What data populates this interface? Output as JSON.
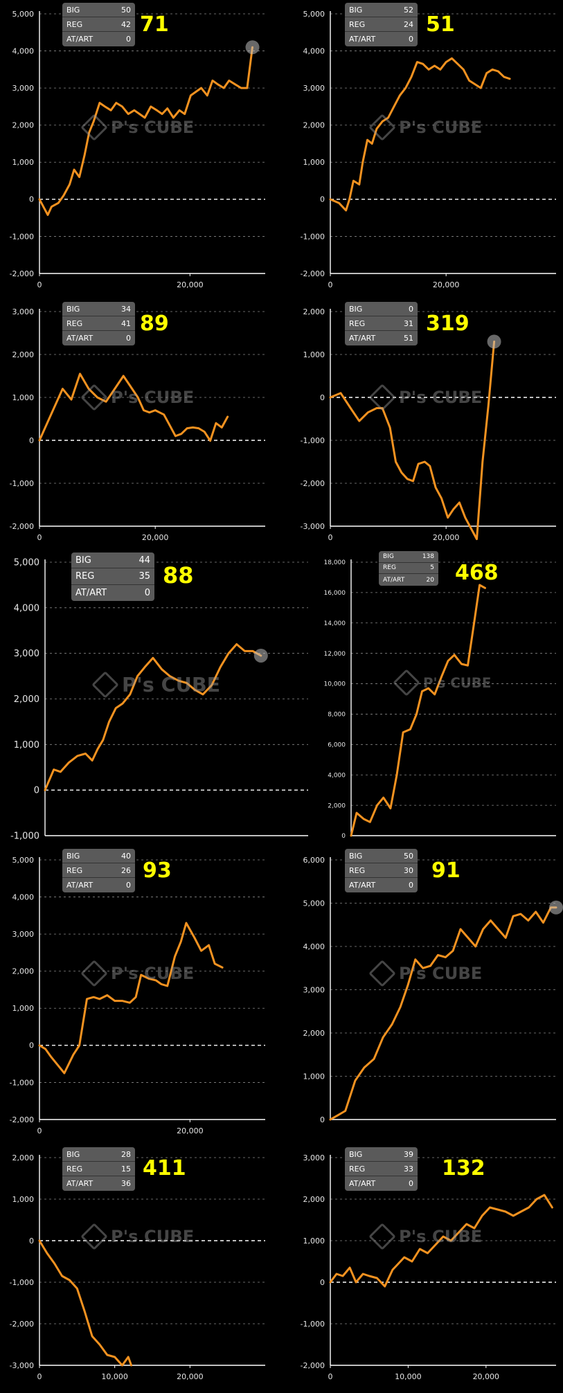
{
  "watermark": "P's CUBE",
  "colors": {
    "line": "#f39220",
    "background": "#000000",
    "stat_box": "#5a5a5a",
    "counter": "#ffff00"
  },
  "chart_data": [
    {
      "type": "line",
      "counter": "71",
      "stats": [
        {
          "label": "BIG",
          "value": "50"
        },
        {
          "label": "REG",
          "value": "42"
        },
        {
          "label": "AT/ART",
          "value": "0"
        }
      ],
      "xlim": [
        0,
        30000
      ],
      "ylim": [
        -2000,
        5000
      ],
      "yticks": [
        {
          "v": 5000,
          "t": "5,000"
        },
        {
          "v": 4000,
          "t": "4,000"
        },
        {
          "v": 3000,
          "t": "3,000"
        },
        {
          "v": 2000,
          "t": "2,000"
        },
        {
          "v": 1000,
          "t": "1,000"
        },
        {
          "v": 0,
          "t": "0"
        },
        {
          "v": -1000,
          "t": "-1,000"
        },
        {
          "v": -2000,
          "t": "-2,000"
        }
      ],
      "xticks": [
        {
          "v": 0,
          "t": "0"
        },
        {
          "v": 20000,
          "t": "20,000"
        }
      ],
      "x": [
        0,
        1100,
        1600,
        2500,
        3200,
        4000,
        4600,
        5300,
        6000,
        6600,
        7200,
        8000,
        8700,
        9500,
        10200,
        11000,
        11800,
        12600,
        13300,
        14000,
        14800,
        15600,
        16300,
        17000,
        17800,
        18600,
        19300,
        20100,
        20800,
        21500,
        22300,
        23000,
        23700,
        24500,
        25200,
        26000,
        26800,
        27600,
        28300
      ],
      "y": [
        0,
        -420,
        -200,
        -100,
        100,
        400,
        800,
        600,
        1200,
        1800,
        2100,
        2600,
        2500,
        2400,
        2600,
        2500,
        2300,
        2400,
        2300,
        2200,
        2500,
        2400,
        2300,
        2450,
        2200,
        2400,
        2300,
        2800,
        2900,
        3000,
        2800,
        3200,
        3100,
        3000,
        3200,
        3100,
        3000,
        3000,
        4100
      ],
      "end_marker": true
    },
    {
      "type": "line",
      "counter": "51",
      "stats": [
        {
          "label": "BIG",
          "value": "52"
        },
        {
          "label": "REG",
          "value": "24"
        },
        {
          "label": "AT/ART",
          "value": "0"
        }
      ],
      "xlim": [
        0,
        39000
      ],
      "ylim": [
        -2000,
        5000
      ],
      "yticks": [
        {
          "v": 5000,
          "t": "5,000"
        },
        {
          "v": 4000,
          "t": "4,000"
        },
        {
          "v": 3000,
          "t": "3,000"
        },
        {
          "v": 2000,
          "t": "2,000"
        },
        {
          "v": 1000,
          "t": "1,000"
        },
        {
          "v": 0,
          "t": "0"
        },
        {
          "v": -1000,
          "t": "-1,000"
        },
        {
          "v": -2000,
          "t": "-2,000"
        }
      ],
      "xticks": [
        {
          "v": 0,
          "t": "0"
        },
        {
          "v": 20000,
          "t": "20,000"
        }
      ],
      "x": [
        0,
        1500,
        2700,
        3300,
        4000,
        5000,
        5600,
        6400,
        7200,
        8000,
        9000,
        10000,
        11000,
        12000,
        13000,
        14000,
        15000,
        16000,
        17000,
        18000,
        19000,
        20000,
        21000,
        22000,
        23000,
        24000,
        25000,
        26000,
        27000,
        28000,
        29000,
        30000,
        31000
      ],
      "y": [
        0,
        -100,
        -300,
        0,
        500,
        400,
        1000,
        1600,
        1500,
        1900,
        2100,
        2200,
        2500,
        2800,
        3000,
        3300,
        3700,
        3650,
        3500,
        3600,
        3500,
        3700,
        3800,
        3650,
        3500,
        3200,
        3100,
        3000,
        3400,
        3500,
        3450,
        3300,
        3250
      ],
      "end_marker": false
    },
    {
      "type": "line",
      "counter": "89",
      "stats": [
        {
          "label": "BIG",
          "value": "34"
        },
        {
          "label": "REG",
          "value": "41"
        },
        {
          "label": "AT/ART",
          "value": "0"
        }
      ],
      "xlim": [
        0,
        39000
      ],
      "ylim": [
        -2000,
        3000
      ],
      "yticks": [
        {
          "v": 3000,
          "t": "3,000"
        },
        {
          "v": 2000,
          "t": "2,000"
        },
        {
          "v": 1000,
          "t": "1,000"
        },
        {
          "v": 0,
          "t": "0"
        },
        {
          "v": -1000,
          "t": "-1,000"
        },
        {
          "v": -2000,
          "t": "-2,000"
        }
      ],
      "xticks": [
        {
          "v": 0,
          "t": "0"
        },
        {
          "v": 20000,
          "t": "20,000"
        }
      ],
      "x": [
        0,
        2000,
        4000,
        5500,
        7000,
        8500,
        10000,
        11500,
        13000,
        14500,
        15500,
        17000,
        18000,
        19000,
        20000,
        21500,
        22500,
        23500,
        24500,
        25500,
        26500,
        27500,
        28500,
        29500,
        30500,
        31500,
        32500
      ],
      "y": [
        0,
        600,
        1200,
        950,
        1550,
        1200,
        1000,
        900,
        1200,
        1500,
        1300,
        1000,
        700,
        650,
        700,
        600,
        350,
        100,
        150,
        280,
        300,
        280,
        200,
        -10,
        400,
        300,
        550
      ],
      "end_marker": false
    },
    {
      "type": "line",
      "counter": "319",
      "stats": [
        {
          "label": "BIG",
          "value": "0"
        },
        {
          "label": "REG",
          "value": "31"
        },
        {
          "label": "AT/ART",
          "value": "51"
        }
      ],
      "xlim": [
        0,
        39000
      ],
      "ylim": [
        -3000,
        2000
      ],
      "yticks": [
        {
          "v": 2000,
          "t": "2,000"
        },
        {
          "v": 1000,
          "t": "1,000"
        },
        {
          "v": 0,
          "t": "0"
        },
        {
          "v": -1000,
          "t": "-1,000"
        },
        {
          "v": -2000,
          "t": "-2,000"
        },
        {
          "v": -3000,
          "t": "-3,000"
        }
      ],
      "xticks": [
        {
          "v": 0,
          "t": "0"
        },
        {
          "v": 20000,
          "t": "20,000"
        }
      ],
      "x": [
        0,
        1800,
        3500,
        5000,
        6500,
        8000,
        9000,
        10300,
        11300,
        12300,
        13300,
        14300,
        15200,
        16300,
        17200,
        18200,
        19200,
        20300,
        21300,
        22300,
        23300,
        24300,
        25300,
        26300,
        27300,
        28300
      ],
      "y": [
        0,
        100,
        -250,
        -550,
        -350,
        -250,
        -250,
        -700,
        -1500,
        -1750,
        -1900,
        -1950,
        -1550,
        -1500,
        -1600,
        -2100,
        -2350,
        -2800,
        -2600,
        -2450,
        -2800,
        -3050,
        -3300,
        -1500,
        -200,
        1300
      ],
      "end_marker": true
    },
    {
      "type": "line",
      "counter": "88",
      "stats": [
        {
          "label": "BIG",
          "value": "44"
        },
        {
          "label": "REG",
          "value": "35"
        },
        {
          "label": "AT/ART",
          "value": "0"
        }
      ],
      "xlim": [
        0,
        39000
      ],
      "ylim": [
        -1000,
        5000
      ],
      "yticks": [
        {
          "v": 5000,
          "t": "5,000"
        },
        {
          "v": 4000,
          "t": "4,000"
        },
        {
          "v": 3000,
          "t": "3,000"
        },
        {
          "v": 2000,
          "t": "2,000"
        },
        {
          "v": 1000,
          "t": "1,000"
        },
        {
          "v": 0,
          "t": "0"
        },
        {
          "v": -1000,
          "t": "-1,000"
        }
      ],
      "xticks": [],
      "x": [
        0,
        1300,
        2300,
        3500,
        4800,
        6000,
        7000,
        7800,
        8600,
        9500,
        10500,
        11500,
        12600,
        13700,
        14800,
        16000,
        17300,
        18500,
        19800,
        21000,
        22200,
        23400,
        24700,
        26000,
        27200,
        28400,
        29600,
        30800,
        32000
      ],
      "y": [
        0,
        450,
        400,
        600,
        750,
        800,
        650,
        900,
        1100,
        1500,
        1800,
        1900,
        2100,
        2500,
        2700,
        2900,
        2650,
        2500,
        2400,
        2350,
        2200,
        2100,
        2300,
        2700,
        3000,
        3200,
        3050,
        3050,
        2950
      ],
      "end_marker": true
    },
    {
      "type": "line",
      "counter": "468",
      "stats": [
        {
          "label": "BIG",
          "value": "138"
        },
        {
          "label": "REG",
          "value": "5"
        },
        {
          "label": "AT/ART",
          "value": "20"
        }
      ],
      "xlim": [
        0,
        26000
      ],
      "ylim": [
        0,
        18000
      ],
      "yticks": [
        {
          "v": 18000,
          "t": "18,000"
        },
        {
          "v": 16000,
          "t": "16,000"
        },
        {
          "v": 14000,
          "t": "14,000"
        },
        {
          "v": 12000,
          "t": "12,000"
        },
        {
          "v": 10000,
          "t": "10,000"
        },
        {
          "v": 8000,
          "t": "8,000"
        },
        {
          "v": 6000,
          "t": "6,000"
        },
        {
          "v": 4000,
          "t": "4,000"
        },
        {
          "v": 2000,
          "t": "2,000"
        },
        {
          "v": 0,
          "t": "0"
        }
      ],
      "xticks": [],
      "x": [
        0,
        700,
        1600,
        2400,
        3300,
        4100,
        5000,
        5800,
        6600,
        7500,
        8300,
        9000,
        9800,
        10600,
        11500,
        12300,
        13100,
        14000,
        14800,
        15600,
        16300,
        17000
      ],
      "y": [
        0,
        1500,
        1100,
        900,
        2000,
        2500,
        1800,
        4000,
        6800,
        7000,
        8000,
        9500,
        9700,
        9300,
        10500,
        11500,
        11900,
        11300,
        11200,
        14000,
        16500,
        16300
      ],
      "end_marker": false
    },
    {
      "type": "line",
      "counter": "93",
      "stats": [
        {
          "label": "BIG",
          "value": "40"
        },
        {
          "label": "REG",
          "value": "26"
        },
        {
          "label": "AT/ART",
          "value": "0"
        }
      ],
      "xlim": [
        0,
        30000
      ],
      "ylim": [
        -2000,
        5000
      ],
      "yticks": [
        {
          "v": 5000,
          "t": "5,000"
        },
        {
          "v": 4000,
          "t": "4,000"
        },
        {
          "v": 3000,
          "t": "3,000"
        },
        {
          "v": 2000,
          "t": "2,000"
        },
        {
          "v": 1000,
          "t": "1,000"
        },
        {
          "v": 0,
          "t": "0"
        },
        {
          "v": -1000,
          "t": "-1,000"
        },
        {
          "v": -2000,
          "t": "-2,000"
        }
      ],
      "xticks": [
        {
          "v": 0,
          "t": "0"
        },
        {
          "v": 20000,
          "t": "20,000"
        }
      ],
      "x": [
        0,
        800,
        1500,
        2500,
        3300,
        4500,
        5300,
        6300,
        7200,
        8000,
        9000,
        10000,
        11000,
        12000,
        12800,
        13500,
        14500,
        15500,
        16200,
        17000,
        18000,
        18800,
        19500,
        20600,
        21500,
        22500,
        23300,
        24300
      ],
      "y": [
        0,
        -100,
        -300,
        -550,
        -750,
        -250,
        0,
        1250,
        1300,
        1250,
        1350,
        1200,
        1200,
        1150,
        1300,
        1900,
        1800,
        1750,
        1650,
        1600,
        2400,
        2800,
        3300,
        2900,
        2550,
        2700,
        2200,
        2100
      ],
      "end_marker": false
    },
    {
      "type": "line",
      "counter": "91",
      "stats": [
        {
          "label": "BIG",
          "value": "50"
        },
        {
          "label": "REG",
          "value": "30"
        },
        {
          "label": "AT/ART",
          "value": "0"
        }
      ],
      "xlim": [
        0,
        30000
      ],
      "ylim": [
        0,
        6000
      ],
      "yticks": [
        {
          "v": 6000,
          "t": "6,000"
        },
        {
          "v": 5000,
          "t": "5,000"
        },
        {
          "v": 4000,
          "t": "4,000"
        },
        {
          "v": 3000,
          "t": "3,000"
        },
        {
          "v": 2000,
          "t": "2,000"
        },
        {
          "v": 1000,
          "t": "1,000"
        },
        {
          "v": 0,
          "t": "0"
        }
      ],
      "xticks": [],
      "x": [
        0,
        1000,
        2000,
        3300,
        4500,
        5800,
        7000,
        8200,
        9300,
        10300,
        11300,
        12300,
        13300,
        14300,
        15300,
        16300,
        17300,
        18300,
        19300,
        20300,
        21300,
        22300,
        23300,
        24300,
        25300,
        26300,
        27300,
        28300,
        29300,
        30000
      ],
      "y": [
        0,
        100,
        200,
        900,
        1200,
        1400,
        1900,
        2200,
        2600,
        3100,
        3700,
        3500,
        3550,
        3800,
        3750,
        3900,
        4400,
        4200,
        4000,
        4400,
        4600,
        4400,
        4200,
        4700,
        4750,
        4600,
        4800,
        4550,
        4900,
        4900
      ],
      "end_marker": true
    },
    {
      "type": "line",
      "counter": "411",
      "stats": [
        {
          "label": "BIG",
          "value": "28"
        },
        {
          "label": "REG",
          "value": "15"
        },
        {
          "label": "AT/ART",
          "value": "36"
        }
      ],
      "xlim": [
        0,
        30000
      ],
      "ylim": [
        -3000,
        2000
      ],
      "yticks": [
        {
          "v": 2000,
          "t": "2,000"
        },
        {
          "v": 1000,
          "t": "1,000"
        },
        {
          "v": 0,
          "t": "0"
        },
        {
          "v": -1000,
          "t": "-1,000"
        },
        {
          "v": -2000,
          "t": "-2,000"
        },
        {
          "v": -3000,
          "t": "-3,000"
        }
      ],
      "xticks": [
        {
          "v": 0,
          "t": "0"
        },
        {
          "v": 10000,
          "t": "10,000"
        },
        {
          "v": 20000,
          "t": "20,000"
        }
      ],
      "x": [
        0,
        1000,
        2000,
        3000,
        4000,
        5000,
        6000,
        7000,
        8000,
        9000,
        10000,
        11000,
        11800,
        12200
      ],
      "y": [
        0,
        -300,
        -550,
        -850,
        -950,
        -1150,
        -1700,
        -2300,
        -2500,
        -2750,
        -2800,
        -3000,
        -2800,
        -3000
      ],
      "end_marker": false
    },
    {
      "type": "line",
      "counter": "132",
      "stats": [
        {
          "label": "BIG",
          "value": "39"
        },
        {
          "label": "REG",
          "value": "33"
        },
        {
          "label": "AT/ART",
          "value": "0"
        }
      ],
      "xlim": [
        0,
        29000
      ],
      "ylim": [
        -2000,
        3000
      ],
      "yticks": [
        {
          "v": 3000,
          "t": "3,000"
        },
        {
          "v": 2000,
          "t": "2,000"
        },
        {
          "v": 1000,
          "t": "1,000"
        },
        {
          "v": 0,
          "t": "0"
        },
        {
          "v": -1000,
          "t": "-1,000"
        },
        {
          "v": -2000,
          "t": "-2,000"
        }
      ],
      "xticks": [
        {
          "v": 0,
          "t": "0"
        },
        {
          "v": 10000,
          "t": "10,000"
        },
        {
          "v": 20000,
          "t": "20,000"
        }
      ],
      "x": [
        0,
        800,
        1600,
        2500,
        3300,
        4200,
        5000,
        6000,
        7000,
        8000,
        8500,
        9500,
        10500,
        11500,
        12500,
        13500,
        14500,
        15500,
        16500,
        17500,
        18500,
        19500,
        20500,
        21500,
        22500,
        23500,
        24500,
        25500,
        26500,
        27500,
        28500
      ],
      "y": [
        0,
        200,
        150,
        350,
        0,
        200,
        150,
        100,
        -100,
        300,
        400,
        600,
        500,
        800,
        700,
        900,
        1100,
        1000,
        1200,
        1400,
        1300,
        1600,
        1800,
        1750,
        1700,
        1600,
        1700,
        1800,
        2000,
        2100,
        1800
      ],
      "end_marker": false
    }
  ]
}
